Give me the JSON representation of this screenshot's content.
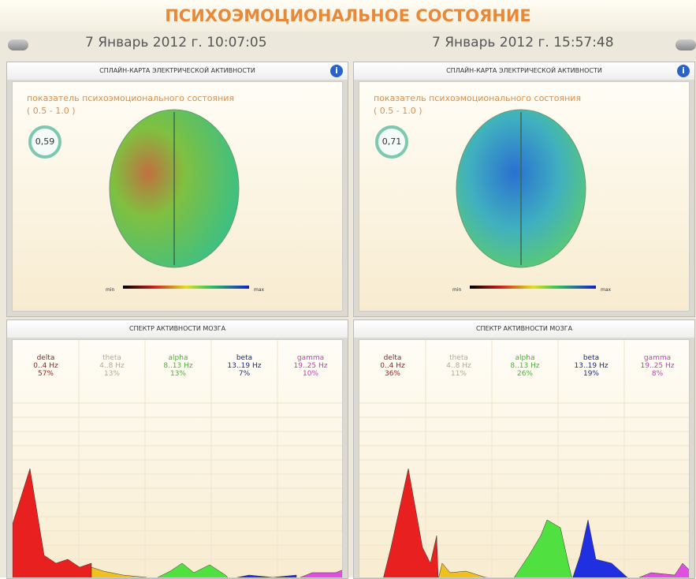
{
  "header": {
    "title": "ПСИХОЭМОЦИОНАЛЬНОЕ СОСТОЯНИЕ"
  },
  "panels": [
    {
      "date": "7 Январь 2012 г. 10:07:05",
      "map_title": "СПЛАЙН-КАРТА ЭЛЕКТРИЧЕСКОЙ АКТИВНОСТИ",
      "indicator_label": "показатель психоэмоционального состояния",
      "indicator_range": "( 0.5 - 1.0 )",
      "indicator_value": "0,59",
      "scale_min": "min",
      "scale_max": "max",
      "spectrum_title": "СПЕКТР АКТИВНОСТИ МОЗГА",
      "bands": [
        {
          "name": "delta",
          "range": "0..4 Hz",
          "percent": "57%"
        },
        {
          "name": "theta",
          "range": "4..8 Hz",
          "percent": "13%"
        },
        {
          "name": "alpha",
          "range": "8..13 Hz",
          "percent": "13%"
        },
        {
          "name": "beta",
          "range": "13..19 Hz",
          "percent": "7%"
        },
        {
          "name": "gamma",
          "range": "19..25 Hz",
          "percent": "10%"
        }
      ]
    },
    {
      "date": "7 Январь 2012 г. 15:57:48",
      "map_title": "СПЛАЙН-КАРТА ЭЛЕКТРИЧЕСКОЙ АКТИВНОСТИ",
      "indicator_label": "показатель психоэмоционального состояния",
      "indicator_range": "( 0.5 - 1.0 )",
      "indicator_value": "0,71",
      "scale_min": "min",
      "scale_max": "max",
      "spectrum_title": "СПЕКТР АКТИВНОСТИ МОЗГА",
      "bands": [
        {
          "name": "delta",
          "range": "0..4 Hz",
          "percent": "36%"
        },
        {
          "name": "theta",
          "range": "4..8 Hz",
          "percent": "11%"
        },
        {
          "name": "alpha",
          "range": "8..13 Hz",
          "percent": "26%"
        },
        {
          "name": "beta",
          "range": "13..19 Hz",
          "percent": "19%"
        },
        {
          "name": "gamma",
          "range": "19..25 Hz",
          "percent": "8%"
        }
      ]
    }
  ]
}
